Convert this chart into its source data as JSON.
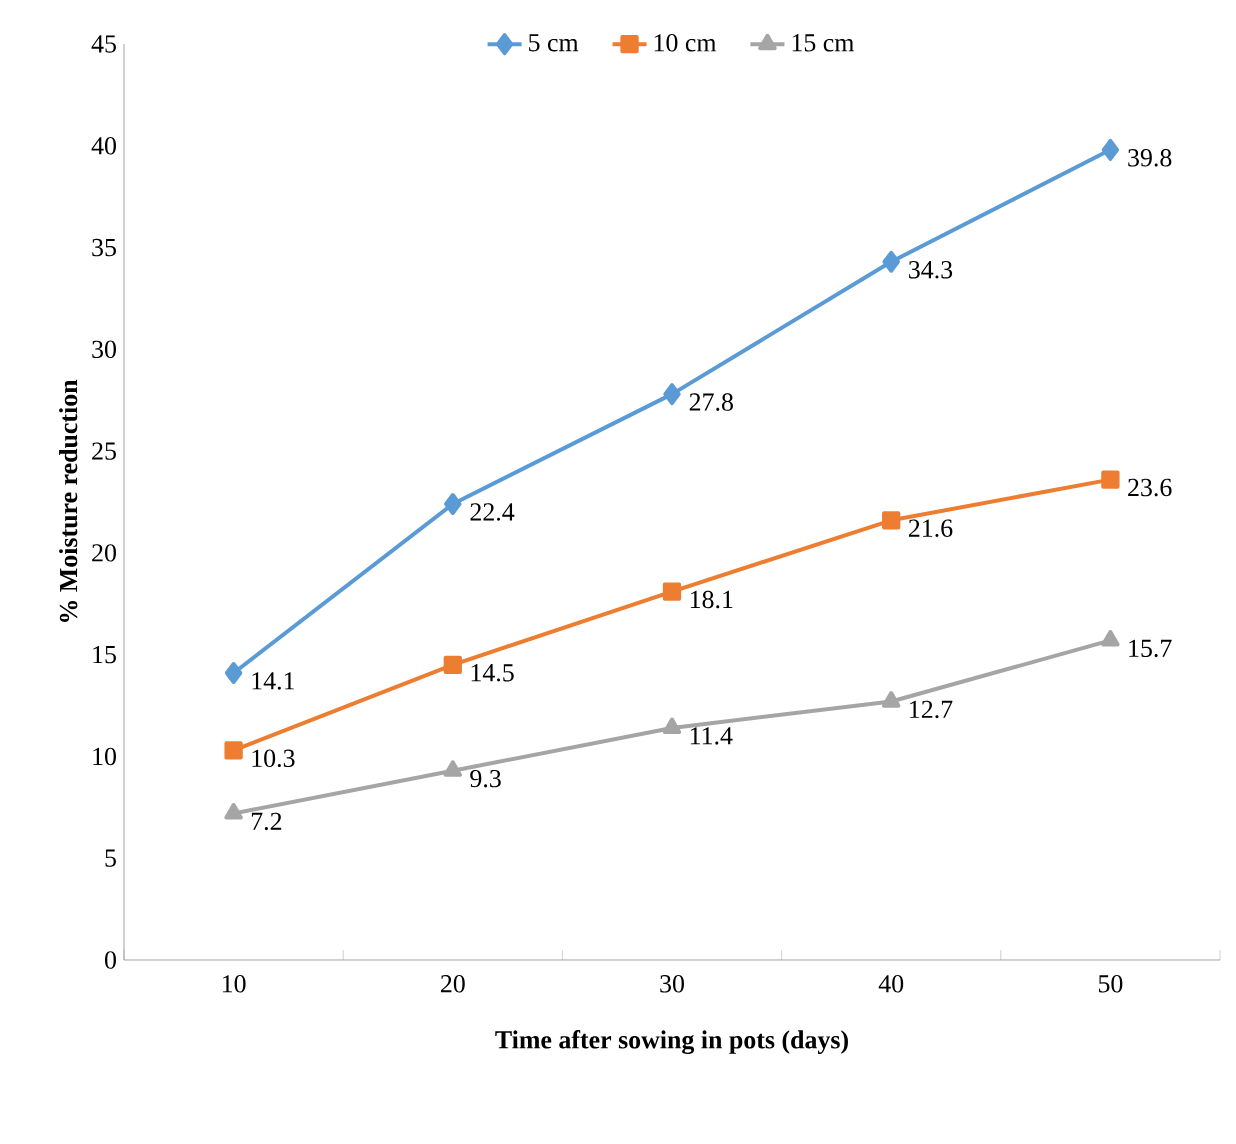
{
  "chart_data": {
    "type": "line",
    "xlabel": "Time after sowing in  pots (days)",
    "ylabel": "% Moisture  reduction",
    "categories": [
      "10",
      "20",
      "30",
      "40",
      "50"
    ],
    "series": [
      {
        "name": "5 cm",
        "color": "#5b9bd5",
        "marker": "diamond",
        "values": [
          14.1,
          22.4,
          27.8,
          34.3,
          39.8
        ]
      },
      {
        "name": "10 cm",
        "color": "#ed7d31",
        "marker": "square",
        "values": [
          10.3,
          14.5,
          18.1,
          21.6,
          23.6
        ]
      },
      {
        "name": "15 cm",
        "color": "#a5a5a5",
        "marker": "triangle",
        "values": [
          7.2,
          9.3,
          11.4,
          12.7,
          15.7
        ]
      }
    ],
    "ylim": [
      0,
      45
    ],
    "yticks": [
      0,
      5,
      10,
      15,
      20,
      25,
      30,
      35,
      40,
      45
    ],
    "grid": false,
    "legend": "top",
    "data_labels": true
  }
}
